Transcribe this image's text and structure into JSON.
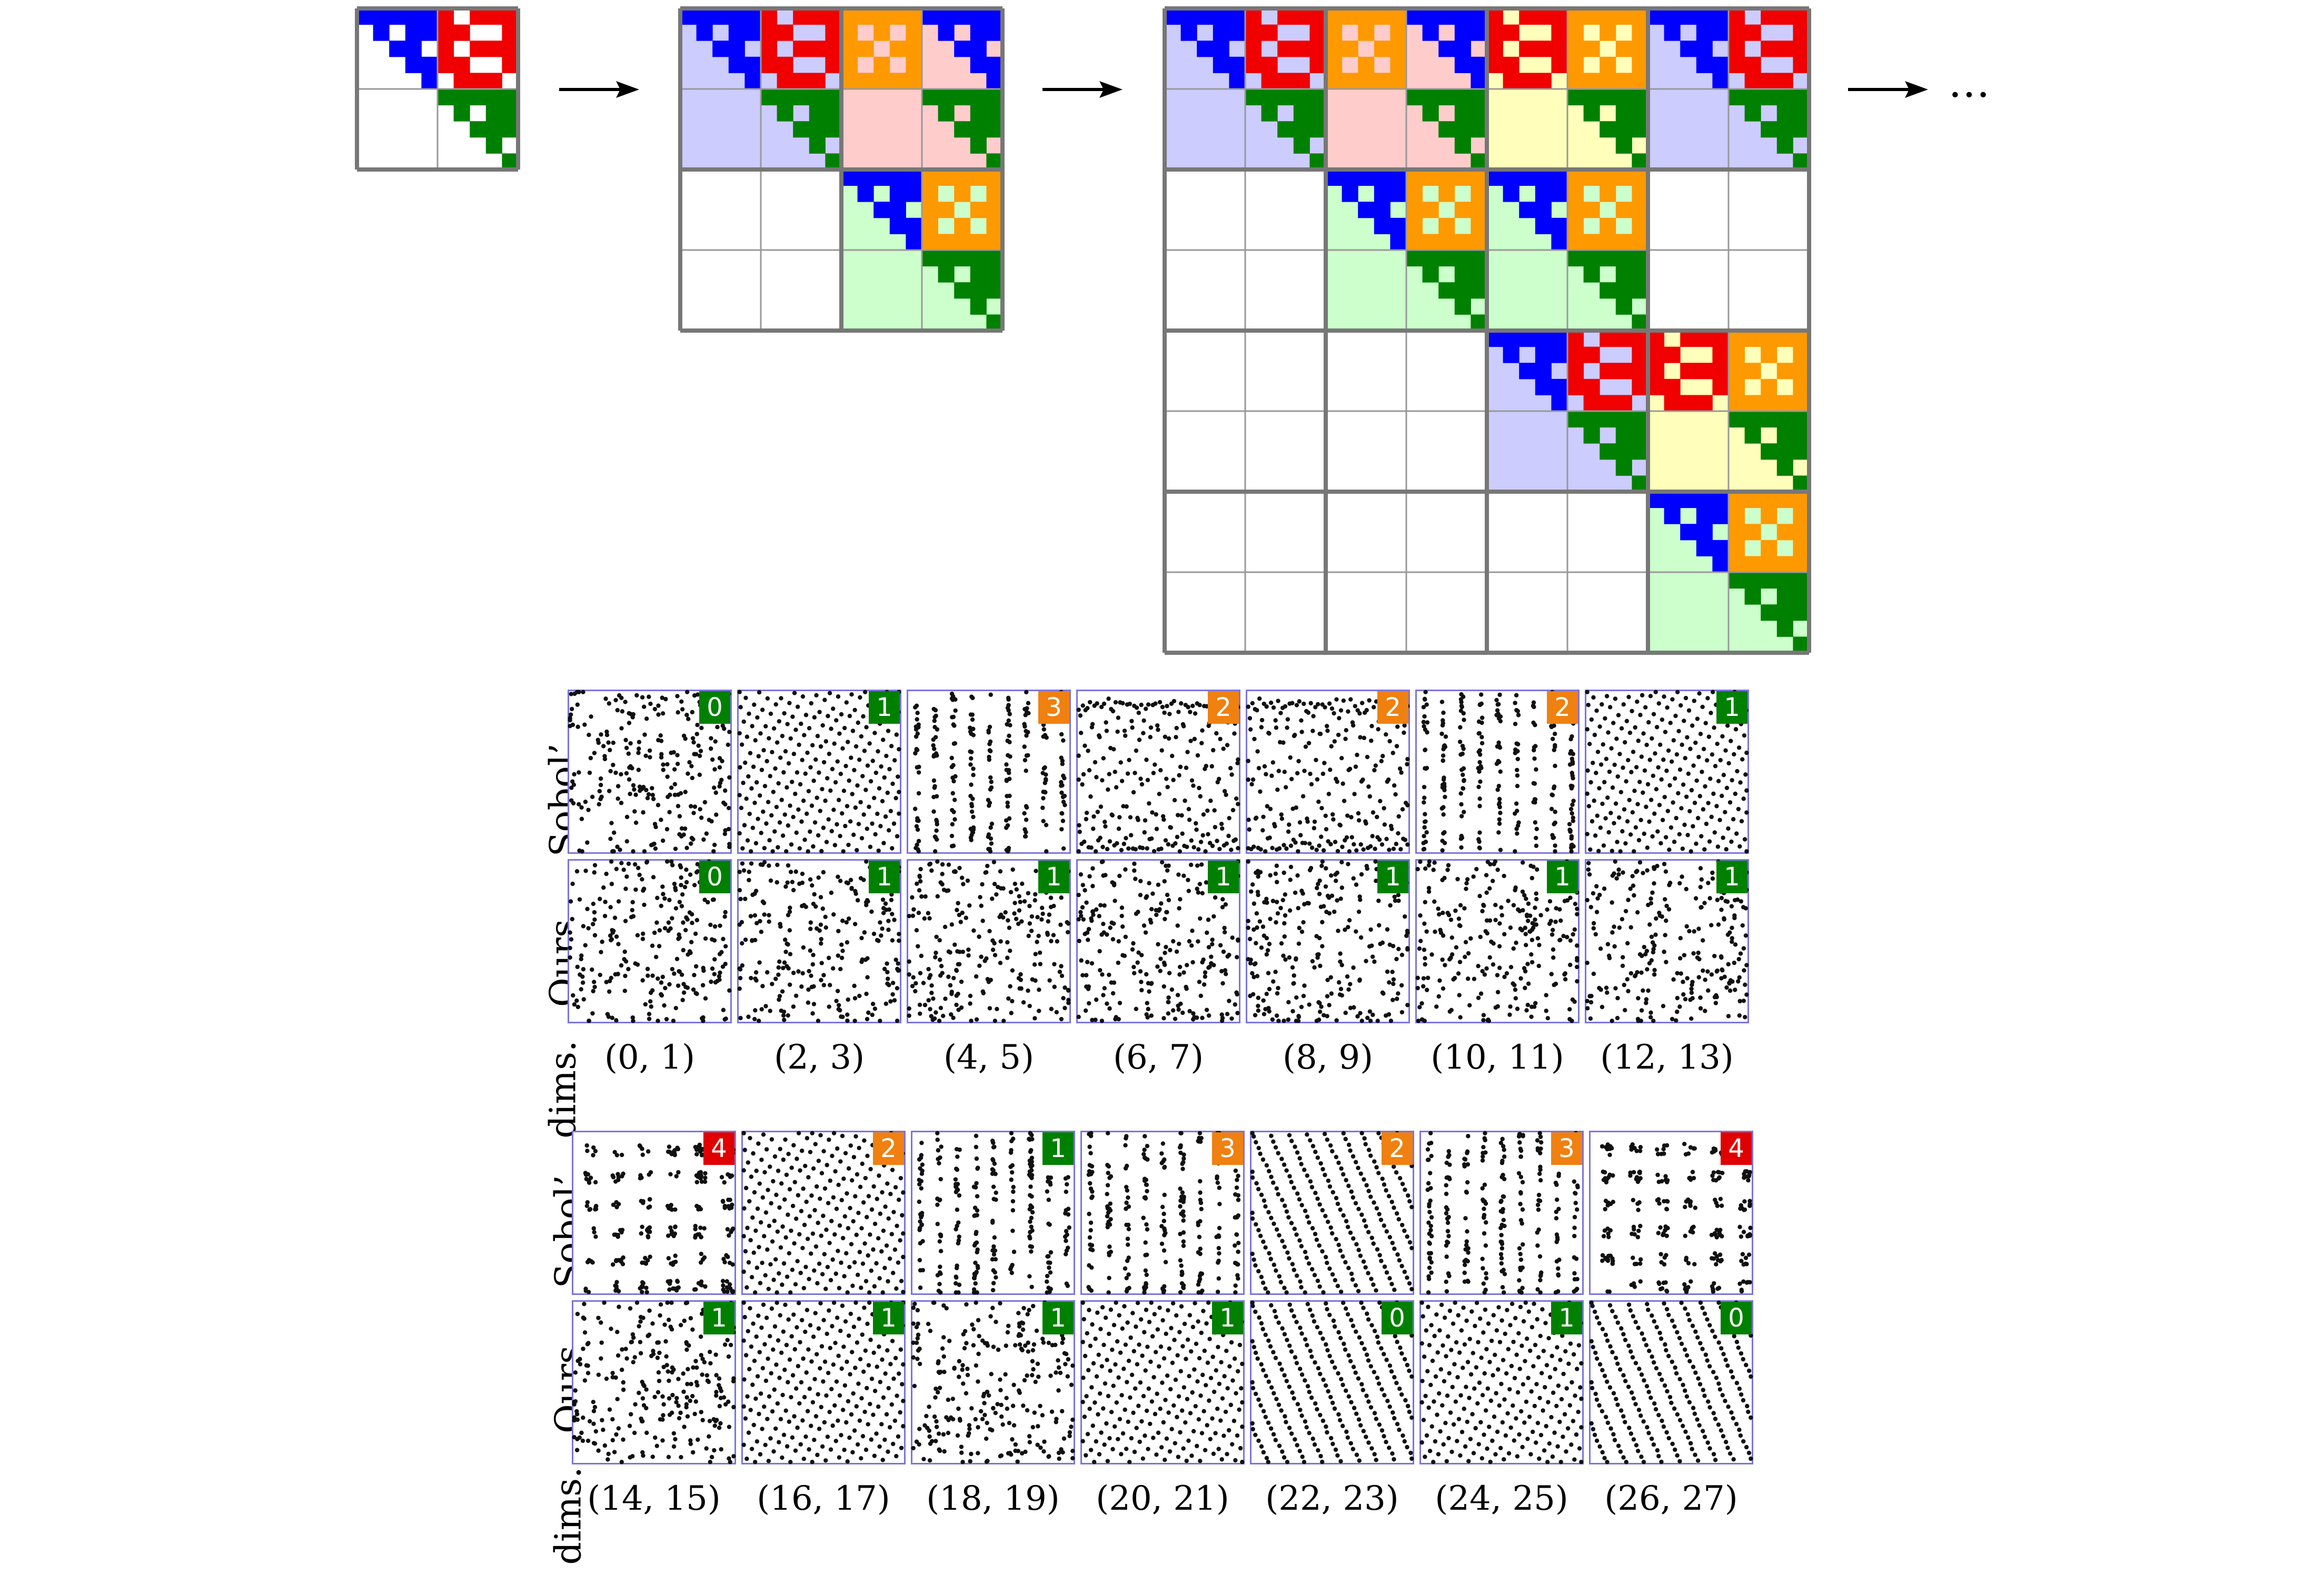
{
  "figure": {
    "top_ellipsis": "…",
    "colors": {
      "blue": "#0000ff",
      "red": "#f00000",
      "green": "#008000",
      "orange": "#ff9900",
      "light_blue": "#ccccff",
      "light_red": "#ffcccc",
      "light_green": "#ccffcc",
      "light_yellow": "#ffffbb",
      "badge_green": "#008000",
      "badge_orange": "#f08010",
      "badge_red": "#e00000",
      "plot_border": "#7b74e0",
      "grid_thick": "#777777",
      "grid_thin": "#999999"
    },
    "panel_a": {
      "row_labels": {
        "sobol": "Sobol’",
        "ours": "Ours",
        "dims": "dims."
      },
      "dims": [
        "(0, 1)",
        "(2, 3)",
        "(4, 5)",
        "(6, 7)",
        "(8, 9)",
        "(10, 11)",
        "(12, 13)"
      ],
      "sobol_badges": [
        {
          "value": "0",
          "level": "green"
        },
        {
          "value": "1",
          "level": "green"
        },
        {
          "value": "3",
          "level": "orange"
        },
        {
          "value": "2",
          "level": "orange"
        },
        {
          "value": "2",
          "level": "orange"
        },
        {
          "value": "2",
          "level": "orange"
        },
        {
          "value": "1",
          "level": "green"
        }
      ],
      "ours_badges": [
        {
          "value": "0",
          "level": "green"
        },
        {
          "value": "1",
          "level": "green"
        },
        {
          "value": "1",
          "level": "green"
        },
        {
          "value": "1",
          "level": "green"
        },
        {
          "value": "1",
          "level": "green"
        },
        {
          "value": "1",
          "level": "green"
        },
        {
          "value": "1",
          "level": "green"
        }
      ]
    },
    "panel_b": {
      "row_labels": {
        "sobol": "Sobol’",
        "ours": "Ours",
        "dims": "dims."
      },
      "dims": [
        "(14, 15)",
        "(16, 17)",
        "(18, 19)",
        "(20, 21)",
        "(22, 23)",
        "(24, 25)",
        "(26, 27)"
      ],
      "sobol_badges": [
        {
          "value": "4",
          "level": "red"
        },
        {
          "value": "2",
          "level": "orange"
        },
        {
          "value": "1",
          "level": "green"
        },
        {
          "value": "3",
          "level": "orange"
        },
        {
          "value": "2",
          "level": "orange"
        },
        {
          "value": "3",
          "level": "orange"
        },
        {
          "value": "4",
          "level": "red"
        }
      ],
      "ours_badges": [
        {
          "value": "1",
          "level": "green"
        },
        {
          "value": "1",
          "level": "green"
        },
        {
          "value": "1",
          "level": "green"
        },
        {
          "value": "1",
          "level": "green"
        },
        {
          "value": "0",
          "level": "green"
        },
        {
          "value": "1",
          "level": "green"
        },
        {
          "value": "0",
          "level": "green"
        }
      ]
    }
  }
}
